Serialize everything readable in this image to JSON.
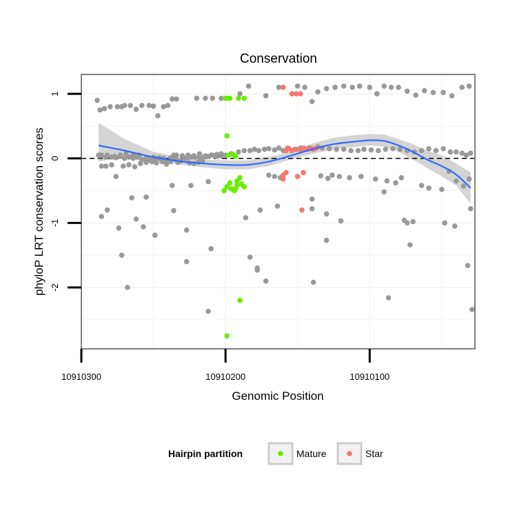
{
  "chart_data": {
    "type": "scatter",
    "title": "Conservation",
    "xlabel": "Genomic Position",
    "ylabel": "phyloP LRT conservation scores",
    "x_reversed": true,
    "xlim": [
      10910300,
      10910027
    ],
    "ylim": [
      -2.95,
      1.3
    ],
    "x_ticks": [
      10910300,
      10910200,
      10910100
    ],
    "x_tick_labels": [
      "10910300",
      "10910200",
      "10910100"
    ],
    "y_ticks": [
      1,
      0,
      -1,
      -2
    ],
    "y_tick_labels": [
      "1",
      "0",
      "-1",
      "-2"
    ],
    "grid": true,
    "reference_line": {
      "y": 0,
      "style": "dashed",
      "color": "#000000"
    },
    "legend": {
      "title": "Hairpin partition",
      "placement": "bottom",
      "entries": [
        {
          "label": "Mature",
          "color": "#66ee00"
        },
        {
          "label": "Star",
          "color": "#f8766d"
        }
      ]
    },
    "series": [
      {
        "group": "other",
        "color": "#999999",
        "x": [
          10910289,
          10910287,
          10910284,
          10910280,
          10910275,
          10910272,
          10910270,
          10910266,
          10910262,
          10910258,
          10910253,
          10910250,
          10910247,
          10910243,
          10910240,
          10910237,
          10910234,
          10910288,
          10910286,
          10910283,
          10910279,
          10910276,
          10910271,
          10910267,
          10910263,
          10910259,
          10910255,
          10910251,
          10910248,
          10910244,
          10910241,
          10910238,
          10910236,
          10910233,
          10910230,
          10910227,
          10910224,
          10910221,
          10910218,
          10910215,
          10910212,
          10910209,
          10910206,
          10910203,
          10910287,
          10910283,
          10910279,
          10910276,
          10910273,
          10910270,
          10910267,
          10910264,
          10910261,
          10910258,
          10910255,
          10910252,
          10910249,
          10910246,
          10910243,
          10910240,
          10910237,
          10910234,
          10910231,
          10910228,
          10910225,
          10910222,
          10910219,
          10910216,
          10910286,
          10910282,
          10910277,
          10910273,
          10910269,
          10910264,
          10910260,
          10910254,
          10910250,
          10910246,
          10910242,
          10910238,
          10910234,
          10910230,
          10910226,
          10910222,
          10910218,
          10910214,
          10910210,
          10910206,
          10910203,
          10910200,
          10910196,
          10910191,
          10910187,
          10910183,
          10910180,
          10910177,
          10910173,
          10910170,
          10910166,
          10910163,
          10910160,
          10910157,
          10910154,
          10910151,
          10910148,
          10910145,
          10910142,
          10910139,
          10910136,
          10910133,
          10910128,
          10910123,
          10910118,
          10910113,
          10910108,
          10910104,
          10910099,
          10910094,
          10910089,
          10910084,
          10910079,
          10910074,
          10910069,
          10910064,
          10910059,
          10910054,
          10910049,
          10910044,
          10910040,
          10910036,
          10910033,
          10910030,
          10910170,
          10910166,
          10910162,
          10910150,
          10910134,
          10910129,
          10910126,
          10910121,
          10910114,
          10910106,
          10910096,
          10910088,
          10910082,
          10910078,
          10910064,
          10910059,
          10910050,
          10910045,
          10910040,
          10910035,
          10910031,
          10910190,
          10910184,
          10910172,
          10910163,
          10910150,
          10910145,
          10910140,
          10910136,
          10910130,
          10910124,
          10910118,
          10910112,
          10910107,
          10910100,
          10910095,
          10910090,
          10910085,
          10910080,
          10910074,
          10910068,
          10910062,
          10910056,
          10910049,
          10910043,
          10910036,
          10910031,
          10910220,
          10910214,
          10910209,
          10910203,
          10910286,
          10910282,
          10910274,
          10910262,
          10910257,
          10910249,
          10910236,
          10910227,
          10910210,
          10910186,
          10910176,
          10910164,
          10910140,
          10910130,
          10910120,
          10910090,
          10910074,
          10910070,
          10910048,
          10910041,
          10910030,
          10910272,
          10910268,
          10910255,
          10910237,
          10910224,
          10910212,
          10910178,
          10910172,
          10910139,
          10910130,
          10910076,
          10910072,
          10910032,
          10910265,
          10910227,
          10910212,
          10910183,
          10910178,
          10910140,
          10910087,
          10910029
        ],
        "y": [
          0.9,
          0.75,
          0.77,
          0.8,
          0.8,
          0.8,
          0.82,
          0.82,
          0.76,
          0.82,
          0.82,
          0.81,
          0.66,
          0.8,
          0.82,
          0.92,
          0.92,
          0.05,
          -0.12,
          -0.12,
          -0.1,
          -0.28,
          -0.12,
          -0.1,
          -0.13,
          -0.08,
          -0.06,
          -0.05,
          -0.07,
          -0.05,
          -0.09,
          -0.05,
          0.05,
          -0.06,
          0.04,
          0.0,
          0.02,
          0.02,
          0.01,
          0.02,
          0.03,
          0.05,
          0.03,
          0.04,
          0.04,
          0.02,
          0.02,
          0.01,
          0.03,
          0.0,
          0.02,
          0.0,
          0.02,
          -0.02,
          0.0,
          -0.03,
          0.0,
          0.01,
          0.0,
          -0.05,
          0.0,
          -0.02,
          -0.04,
          0.0,
          -0.07,
          -0.08,
          -0.06,
          -0.05,
          0.05,
          0.05,
          0.03,
          0.05,
          0.07,
          0.05,
          0.05,
          0.0,
          0.02,
          0.0,
          -0.02,
          0.01,
          0.05,
          0.04,
          0.05,
          0.04,
          0.07,
          0.04,
          0.05,
          0.06,
          0.07,
          0.05,
          0.07,
          0.1,
          0.12,
          0.12,
          0.14,
          0.12,
          0.14,
          0.15,
          0.13,
          0.16,
          0.12,
          0.16,
          0.12,
          0.14,
          0.16,
          0.15,
          0.16,
          0.14,
          0.18,
          0.16,
          0.15,
          0.14,
          0.14,
          0.12,
          0.12,
          0.14,
          0.13,
          0.12,
          0.14,
          0.15,
          0.14,
          0.12,
          0.1,
          0.12,
          0.15,
          0.12,
          0.15,
          0.1,
          0.1,
          0.08,
          0.05,
          0.08,
          -0.26,
          -0.28,
          -0.3,
          -0.28,
          -0.27,
          -0.31,
          -0.26,
          -0.28,
          -0.3,
          -0.28,
          -0.32,
          -0.35,
          -0.38,
          -0.3,
          -0.42,
          -0.46,
          -0.48,
          -0.2,
          -0.35,
          -0.43,
          -0.32,
          1.0,
          1.12,
          0.97,
          1.1,
          1.12,
          1.1,
          0.88,
          1.03,
          1.08,
          1.1,
          1.12,
          1.1,
          1.12,
          1.1,
          1.0,
          1.12,
          1.1,
          1.1,
          1.04,
          0.98,
          1.05,
          1.02,
          1.02,
          0.97,
          1.1,
          1.12,
          0.93,
          0.93,
          0.93,
          0.93,
          -0.9,
          -0.8,
          -1.08,
          -0.94,
          -1.06,
          -1.19,
          -0.81,
          -1.11,
          -1.4,
          -0.92,
          -0.8,
          -0.74,
          -0.63,
          -0.86,
          -0.97,
          -0.52,
          -1.0,
          -0.98,
          -1.0,
          -1.05,
          -0.78,
          -1.5,
          -2.0,
          -0.6,
          -0.42,
          -0.42,
          -0.36,
          -1.7,
          -1.9,
          -1.92,
          -1.27,
          -0.96,
          -1.34,
          -1.66,
          -0.61,
          -1.6,
          -2.37,
          -1.53,
          -1.73,
          -0.78,
          -2.16,
          -2.34
        ]
      },
      {
        "group": "Mature",
        "name": "Mature",
        "color": "#66ee00",
        "x": [
          10910200,
          10910198,
          10910197,
          10910191,
          10910187,
          10910199,
          10910195,
          10910198,
          10910193,
          10910190,
          10910192,
          10910197,
          10910189,
          10910187,
          10910201,
          10910196,
          10910194,
          10910199,
          10910193,
          10910192
        ],
        "y": [
          0.93,
          0.93,
          0.93,
          0.93,
          0.93,
          0.35,
          0.06,
          0.05,
          0.03,
          -0.3,
          -0.35,
          -0.38,
          -0.4,
          -0.44,
          -0.5,
          -0.47,
          -0.5,
          -0.44,
          -0.47,
          -0.41
        ],
        "extra_points": [
          {
            "x": 10910199,
            "y": -2.75
          },
          {
            "x": 10910190,
            "y": -2.2
          }
        ]
      },
      {
        "group": "Star",
        "name": "Star",
        "color": "#f8766d",
        "x": [
          10910160,
          10910154,
          10910151,
          10910148,
          10910158,
          10910156,
          10910154,
          10910152,
          10910148,
          10910146,
          10910143,
          10910140,
          10910137,
          10910160,
          10910160,
          10910158,
          10910150,
          10910146,
          10910147
        ],
        "y": [
          1.1,
          1.0,
          1.0,
          1.0,
          0.12,
          0.15,
          0.12,
          0.14,
          0.13,
          0.16,
          0.14,
          0.15,
          0.16,
          -0.26,
          -0.32,
          -0.22,
          -0.28,
          -0.22,
          -0.8
        ]
      }
    ],
    "smooth_fit": {
      "method": "loess",
      "color": "#3366ff",
      "band_color": "#cccccc",
      "x": [
        10910288,
        10910270,
        10910250,
        10910230,
        10910215,
        10910200,
        10910185,
        10910170,
        10910155,
        10910140,
        10910125,
        10910110,
        10910100,
        10910090,
        10910080,
        10910070,
        10910060,
        10910050,
        10910040,
        10910030
      ],
      "y": [
        0.2,
        0.12,
        0.02,
        -0.05,
        -0.08,
        -0.1,
        -0.1,
        -0.05,
        0.04,
        0.14,
        0.22,
        0.26,
        0.28,
        0.27,
        0.2,
        0.1,
        -0.02,
        -0.12,
        -0.25,
        -0.46
      ],
      "lower": [
        -0.05,
        0.02,
        -0.04,
        -0.1,
        -0.14,
        -0.17,
        -0.17,
        -0.12,
        -0.02,
        0.07,
        0.14,
        0.18,
        0.2,
        0.18,
        0.1,
        -0.02,
        -0.15,
        -0.28,
        -0.42,
        -0.7
      ],
      "upper": [
        0.55,
        0.3,
        0.1,
        0.01,
        -0.02,
        -0.03,
        -0.03,
        0.02,
        0.1,
        0.23,
        0.32,
        0.36,
        0.38,
        0.37,
        0.3,
        0.22,
        0.12,
        0.05,
        -0.08,
        -0.22
      ]
    }
  }
}
